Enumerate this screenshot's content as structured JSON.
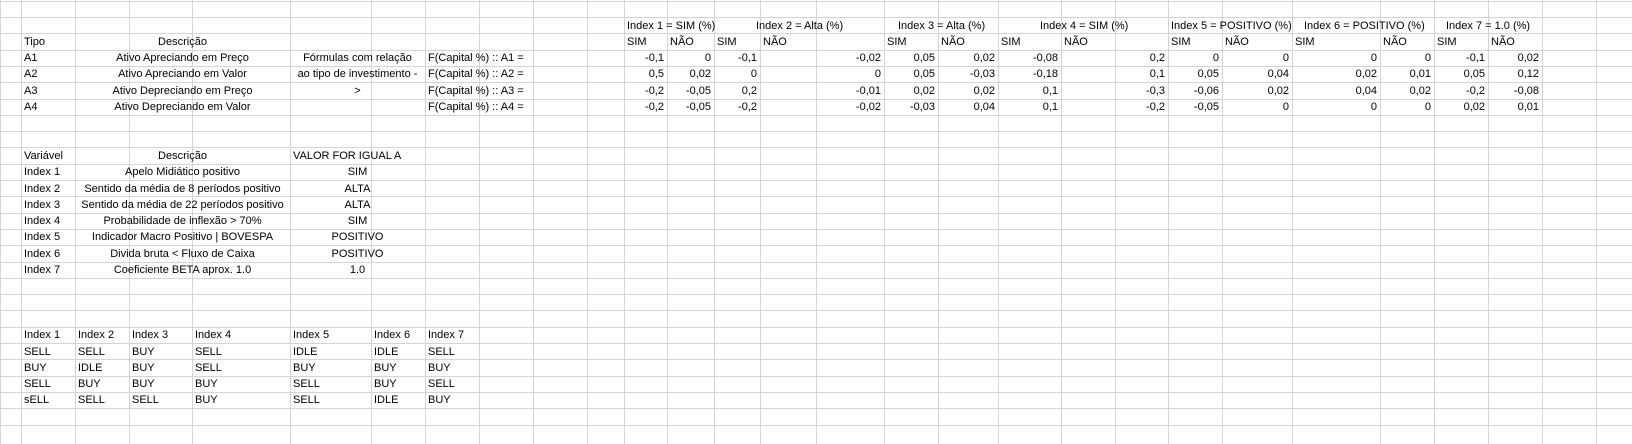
{
  "top": {
    "index_headers": [
      "Index 1 = SIM (%)",
      "Index 2 = Alta (%)",
      "Index 3 = Alta (%)",
      "Index 4 = SIM (%)",
      "Index 5 = POSITIVO (%)",
      "Index 6 = POSITIVO (%)",
      "Index 7 = 1.0 (%)"
    ],
    "col_tipo": "Tipo",
    "col_descricao": "Descrição",
    "sub_headers": [
      "SIM",
      "NÃO",
      "SIM",
      "NÃO",
      "SIM",
      "NÃO",
      "SIM",
      "NÃO",
      "SIM",
      "NÃO",
      "SIM",
      "NÃO",
      "SIM",
      "NÃO"
    ],
    "formula_note": [
      "Fórmulas com relação",
      "ao tipo de investimento -",
      ">"
    ],
    "rows": [
      {
        "tipo": "A1",
        "descricao": "Ativo Apreciando em Preço",
        "formula": "F(Capital %) :: A1 =",
        "values": [
          "-0,1",
          "0",
          "-0,1",
          "-0,02",
          "0,05",
          "0,02",
          "-0,08",
          "0,2",
          "0",
          "0",
          "0",
          "0",
          "-0,1",
          "0,02"
        ]
      },
      {
        "tipo": "A2",
        "descricao": "Ativo Apreciando em Valor",
        "formula": "F(Capital %) :: A2 =",
        "values": [
          "0,5",
          "0,02",
          "0",
          "0",
          "0,05",
          "-0,03",
          "-0,18",
          "0,1",
          "0,05",
          "0,04",
          "0,02",
          "0,01",
          "0,05",
          "0,12"
        ]
      },
      {
        "tipo": "A3",
        "descricao": "Ativo Depreciando em Preço",
        "formula": "F(Capital %) :: A3 =",
        "values": [
          "-0,2",
          "-0,05",
          "0,2",
          "-0,01",
          "0,02",
          "0,02",
          "0,1",
          "-0,3",
          "-0,06",
          "0,02",
          "0,04",
          "0,02",
          "-0,2",
          "-0,08"
        ]
      },
      {
        "tipo": "A4",
        "descricao": "Ativo Depreciando em Valor",
        "formula": "F(Capital %) :: A4 =",
        "values": [
          "-0,2",
          "-0,05",
          "-0,2",
          "-0,02",
          "-0,03",
          "0,04",
          "0,1",
          "-0,2",
          "-0,05",
          "0",
          "0",
          "0",
          "0,02",
          "0,01"
        ]
      }
    ]
  },
  "variables": {
    "headers": {
      "variavel": "Variável",
      "descricao": "Descrição",
      "valor": "VALOR FOR IGUAL A"
    },
    "rows": [
      {
        "name": "Index 1",
        "descricao": "Apelo Midiático positivo",
        "valor": "SIM"
      },
      {
        "name": "Index 2",
        "descricao": "Sentido da média de 8 períodos positivo",
        "valor": "ALTA"
      },
      {
        "name": "Index 3",
        "descricao": "Sentido da média de 22 períodos positivo",
        "valor": "ALTA"
      },
      {
        "name": "Index 4",
        "descricao": "Probabilidade de inflexão > 70%",
        "valor": "SIM"
      },
      {
        "name": "Index 5",
        "descricao": "Indicador Macro Positivo | BOVESPA",
        "valor": "POSITIVO"
      },
      {
        "name": "Index 6",
        "descricao": "Divida bruta < Fluxo de Caixa",
        "valor": "POSITIVO"
      },
      {
        "name": "Index 7",
        "descricao": "Coeficiente BETA  aprox. 1.0",
        "valor": "1.0"
      }
    ]
  },
  "signals": {
    "headers": [
      "Index 1",
      "Index 2",
      "Index 3",
      "Index 4",
      "Index 5",
      "Index 6",
      "Index 7"
    ],
    "rows": [
      [
        "SELL",
        "SELL",
        "BUY",
        "SELL",
        "IDLE",
        "IDLE",
        "SELL"
      ],
      [
        "BUY",
        "IDLE",
        "BUY",
        "SELL",
        "BUY",
        "BUY",
        "BUY"
      ],
      [
        "SELL",
        "BUY",
        "BUY",
        "BUY",
        "SELL",
        "BUY",
        "SELL"
      ],
      [
        "sELL",
        "SELL",
        "SELL",
        "BUY",
        "SELL",
        "IDLE",
        "BUY"
      ]
    ]
  }
}
